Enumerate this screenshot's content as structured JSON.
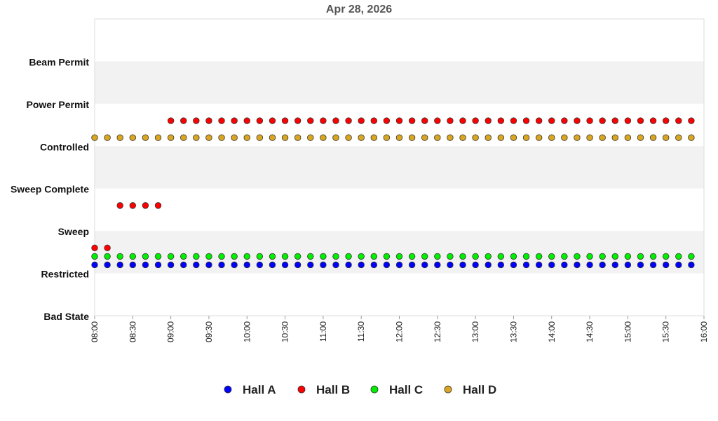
{
  "chart_data": {
    "type": "scatter",
    "title": "Apr 28, 2026",
    "xlabel": "",
    "ylabel": "",
    "y_categories": [
      "Bad State",
      "Restricted",
      "Sweep",
      "Sweep Complete",
      "Controlled",
      "Power Permit",
      "Beam Permit"
    ],
    "x_ticks": [
      "08:00",
      "08:30",
      "09:00",
      "09:30",
      "10:00",
      "10:30",
      "11:00",
      "11:30",
      "12:00",
      "12:30",
      "13:00",
      "13:30",
      "14:00",
      "14:30",
      "15:00",
      "15:30",
      "16:00"
    ],
    "x_range": [
      "08:00",
      "16:00"
    ],
    "sample_interval_minutes": 10,
    "legend_position": "bottom",
    "series": [
      {
        "name": "Hall A",
        "color": "#0000ff",
        "segments": [
          {
            "from": "08:00",
            "to": "15:50",
            "state": "Restricted",
            "offset": 0.2
          }
        ]
      },
      {
        "name": "Hall B",
        "color": "#ff0000",
        "segments": [
          {
            "from": "08:00",
            "to": "08:10",
            "state": "Restricted",
            "offset": 0.6
          },
          {
            "from": "08:20",
            "to": "08:50",
            "state": "Sweep",
            "offset": 0.6
          },
          {
            "from": "09:00",
            "to": "15:50",
            "state": "Controlled",
            "offset": 0.6
          }
        ]
      },
      {
        "name": "Hall C",
        "color": "#00ee00",
        "segments": [
          {
            "from": "08:00",
            "to": "15:50",
            "state": "Restricted",
            "offset": 0.4
          }
        ]
      },
      {
        "name": "Hall D",
        "color": "#daa520",
        "segments": [
          {
            "from": "08:00",
            "to": "15:50",
            "state": "Controlled",
            "offset": 0.2
          }
        ]
      }
    ]
  }
}
